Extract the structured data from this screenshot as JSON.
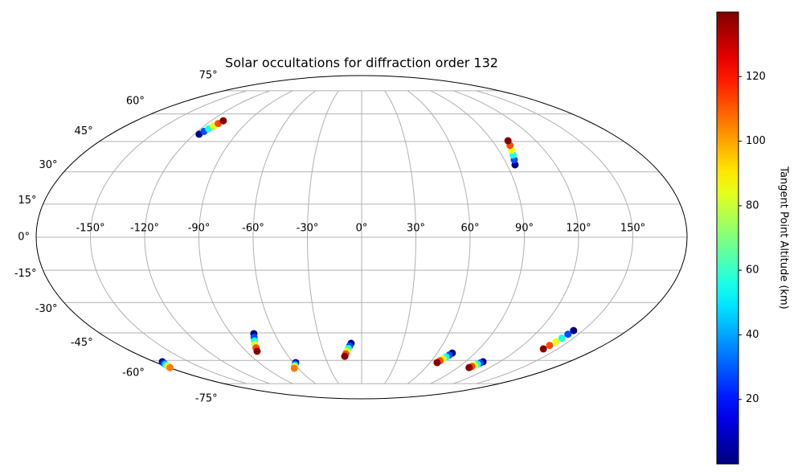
{
  "chart_data": {
    "type": "scatter",
    "projection": "mollweide",
    "title": "Solar occultations for diffraction order 132",
    "grid": true,
    "xlim": [
      -180,
      180
    ],
    "ylim": [
      -90,
      90
    ],
    "xticks": [
      {
        "value": -150,
        "label": "-150°"
      },
      {
        "value": -120,
        "label": "-120°"
      },
      {
        "value": -90,
        "label": "-90°"
      },
      {
        "value": -60,
        "label": "-60°"
      },
      {
        "value": -30,
        "label": "-30°"
      },
      {
        "value": 0,
        "label": "0°"
      },
      {
        "value": 30,
        "label": "30°"
      },
      {
        "value": 60,
        "label": "60°"
      },
      {
        "value": 90,
        "label": "90°"
      },
      {
        "value": 120,
        "label": "120°"
      },
      {
        "value": 150,
        "label": "150°"
      }
    ],
    "yticks": [
      {
        "value": -75,
        "label": "-75°"
      },
      {
        "value": -60,
        "label": "-60°"
      },
      {
        "value": -45,
        "label": "-45°"
      },
      {
        "value": -30,
        "label": "-30°"
      },
      {
        "value": -15,
        "label": "-15°"
      },
      {
        "value": 0,
        "label": "0°"
      },
      {
        "value": 15,
        "label": "15°"
      },
      {
        "value": 30,
        "label": "30°"
      },
      {
        "value": 45,
        "label": "45°"
      },
      {
        "value": 60,
        "label": "60°"
      },
      {
        "value": 75,
        "label": "75°"
      }
    ],
    "x": [
      -116.6,
      -115.3,
      -114.1,
      -112.8,
      -111.6,
      -110.3,
      94.9,
      96.1,
      97.3,
      98.5,
      99.7,
      100.9,
      -173,
      -174.3,
      -175.6,
      -176.8,
      -178.1,
      -179.4,
      -74.3,
      -75.8,
      -77.2,
      -78.7,
      -80.1,
      -81.6,
      -57.8,
      -59.0,
      -60.1,
      -61.3,
      -62.4,
      -63.6,
      -7.7,
      -8.9,
      -10.1,
      -11.4,
      -12.6,
      -13.8,
      71.9,
      70.8,
      69.6,
      68.5,
      67.3,
      66.2,
      105.4,
      104.4,
      103.5,
      102.5,
      101.6,
      100.6,
      143.6,
      142.7,
      141.8,
      140.9,
      140.0,
      139.1
    ],
    "values": [
      48.8,
      50.3,
      51.7,
      53.2,
      54.6,
      56.1,
      33.4,
      35.8,
      38.2,
      40.6,
      43.0,
      45.4,
      -60.8,
      -61.5,
      -62.2,
      -62.9,
      -63.6,
      -64.3,
      -45.4,
      -47.3,
      -49.2,
      -51.0,
      -52.9,
      -54.8,
      -61.3,
      -62.0,
      -62.7,
      -63.3,
      -64.0,
      -64.7,
      -50.5,
      -51.9,
      -53.3,
      -54.8,
      -56.2,
      -57.6,
      -55.8,
      -56.9,
      -58.0,
      -59.1,
      -60.2,
      -61.3,
      -60.8,
      -61.5,
      -62.2,
      -62.9,
      -63.6,
      -64.3,
      -43.8,
      -45.7,
      -47.7,
      -49.6,
      -51.6,
      -53.5
    ],
    "color_values": [
      1,
      28,
      56,
      84,
      112,
      139,
      1,
      28,
      56,
      84,
      112,
      139,
      1,
      22,
      43,
      64,
      85,
      106,
      1,
      28,
      56,
      84,
      112,
      139,
      1,
      22,
      43,
      64,
      85,
      106,
      1,
      28,
      56,
      84,
      112,
      139,
      1,
      28,
      56,
      84,
      112,
      139,
      1,
      28,
      56,
      84,
      112,
      139,
      1,
      28,
      56,
      84,
      112,
      139
    ],
    "colorbar": {
      "label": "Tangent Point Altitude (km)",
      "cmap": "jet",
      "clim": [
        0,
        140
      ],
      "ticks": [
        20,
        40,
        60,
        80,
        100,
        120
      ]
    }
  }
}
